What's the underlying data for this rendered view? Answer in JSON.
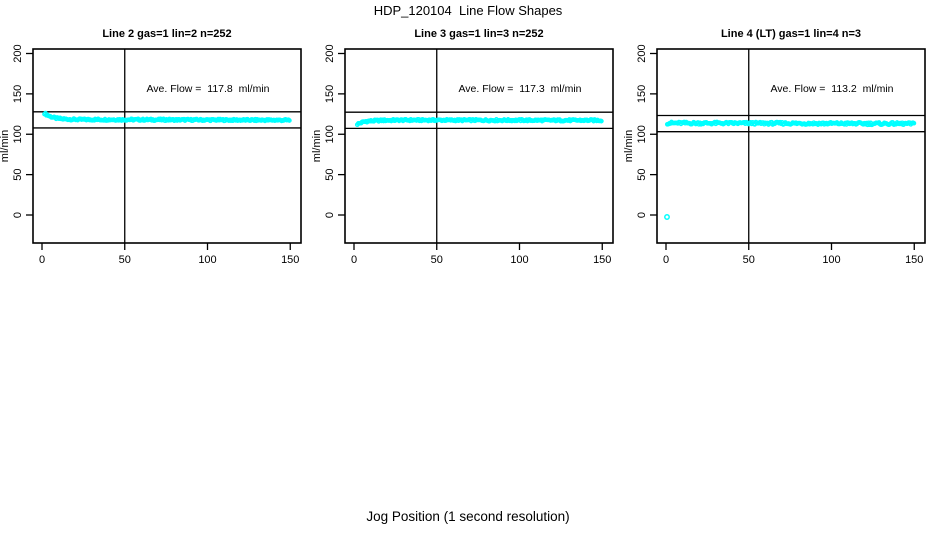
{
  "title": "HDP_120104  Line Flow Shapes",
  "xlabel": "Jog Position (1 second resolution)",
  "colors": {
    "points": "#00ffff",
    "axis": "#000000",
    "background": "#ffffff"
  },
  "chart_data": {
    "type": "scatter",
    "ylabel": "ml/min",
    "x_ticks": [
      0,
      50,
      100,
      150
    ],
    "y_ticks": [
      0,
      50,
      100,
      150,
      200
    ],
    "xlim": [
      -5,
      157
    ],
    "ylim": [
      -35,
      206
    ],
    "vline_x": 50,
    "legend": "none",
    "grid": false,
    "panels": [
      {
        "title": "Line 2 gas=1 lin=2 n=252",
        "ave_flow": 117.8,
        "ave_flow_label": "Ave. Flow =  117.8  ml/min",
        "n": 252,
        "ref_line_upper": 127.8,
        "ref_line_lower": 107.8,
        "x_range": [
          1.5,
          149.5
        ],
        "profile": [
          [
            1.5,
            126
          ],
          [
            3,
            124
          ],
          [
            5,
            122
          ],
          [
            8,
            120
          ],
          [
            12,
            119
          ],
          [
            20,
            118.2
          ],
          [
            60,
            118
          ],
          [
            150,
            117.4
          ]
        ],
        "noise": 1.1,
        "render_points": 252,
        "outliers": []
      },
      {
        "title": "Line 3 gas=1 lin=3 n=252",
        "ave_flow": 117.3,
        "ave_flow_label": "Ave. Flow =  117.3  ml/min",
        "n": 252,
        "ref_line_upper": 127.3,
        "ref_line_lower": 107.3,
        "x_range": [
          2,
          149.5
        ],
        "profile": [
          [
            2,
            112.5
          ],
          [
            4,
            114
          ],
          [
            6,
            115.5
          ],
          [
            10,
            116.5
          ],
          [
            18,
            117.2
          ],
          [
            30,
            117.5
          ],
          [
            150,
            117.2
          ]
        ],
        "noise": 1.1,
        "render_points": 252,
        "outliers": []
      },
      {
        "title": "Line 4 (LT) gas=1 lin=4 n=3",
        "ave_flow": 113.2,
        "ave_flow_label": "Ave. Flow =  113.2  ml/min",
        "n": 3,
        "ref_line_upper": 123.2,
        "ref_line_lower": 103.2,
        "x_range": [
          0.8,
          149.8
        ],
        "profile": [
          [
            0.8,
            113.8
          ],
          [
            75,
            113.5
          ],
          [
            150,
            113.0
          ]
        ],
        "noise": 1.5,
        "render_points": 235,
        "outliers": [
          [
            0.6,
            -2.5
          ]
        ]
      }
    ]
  }
}
